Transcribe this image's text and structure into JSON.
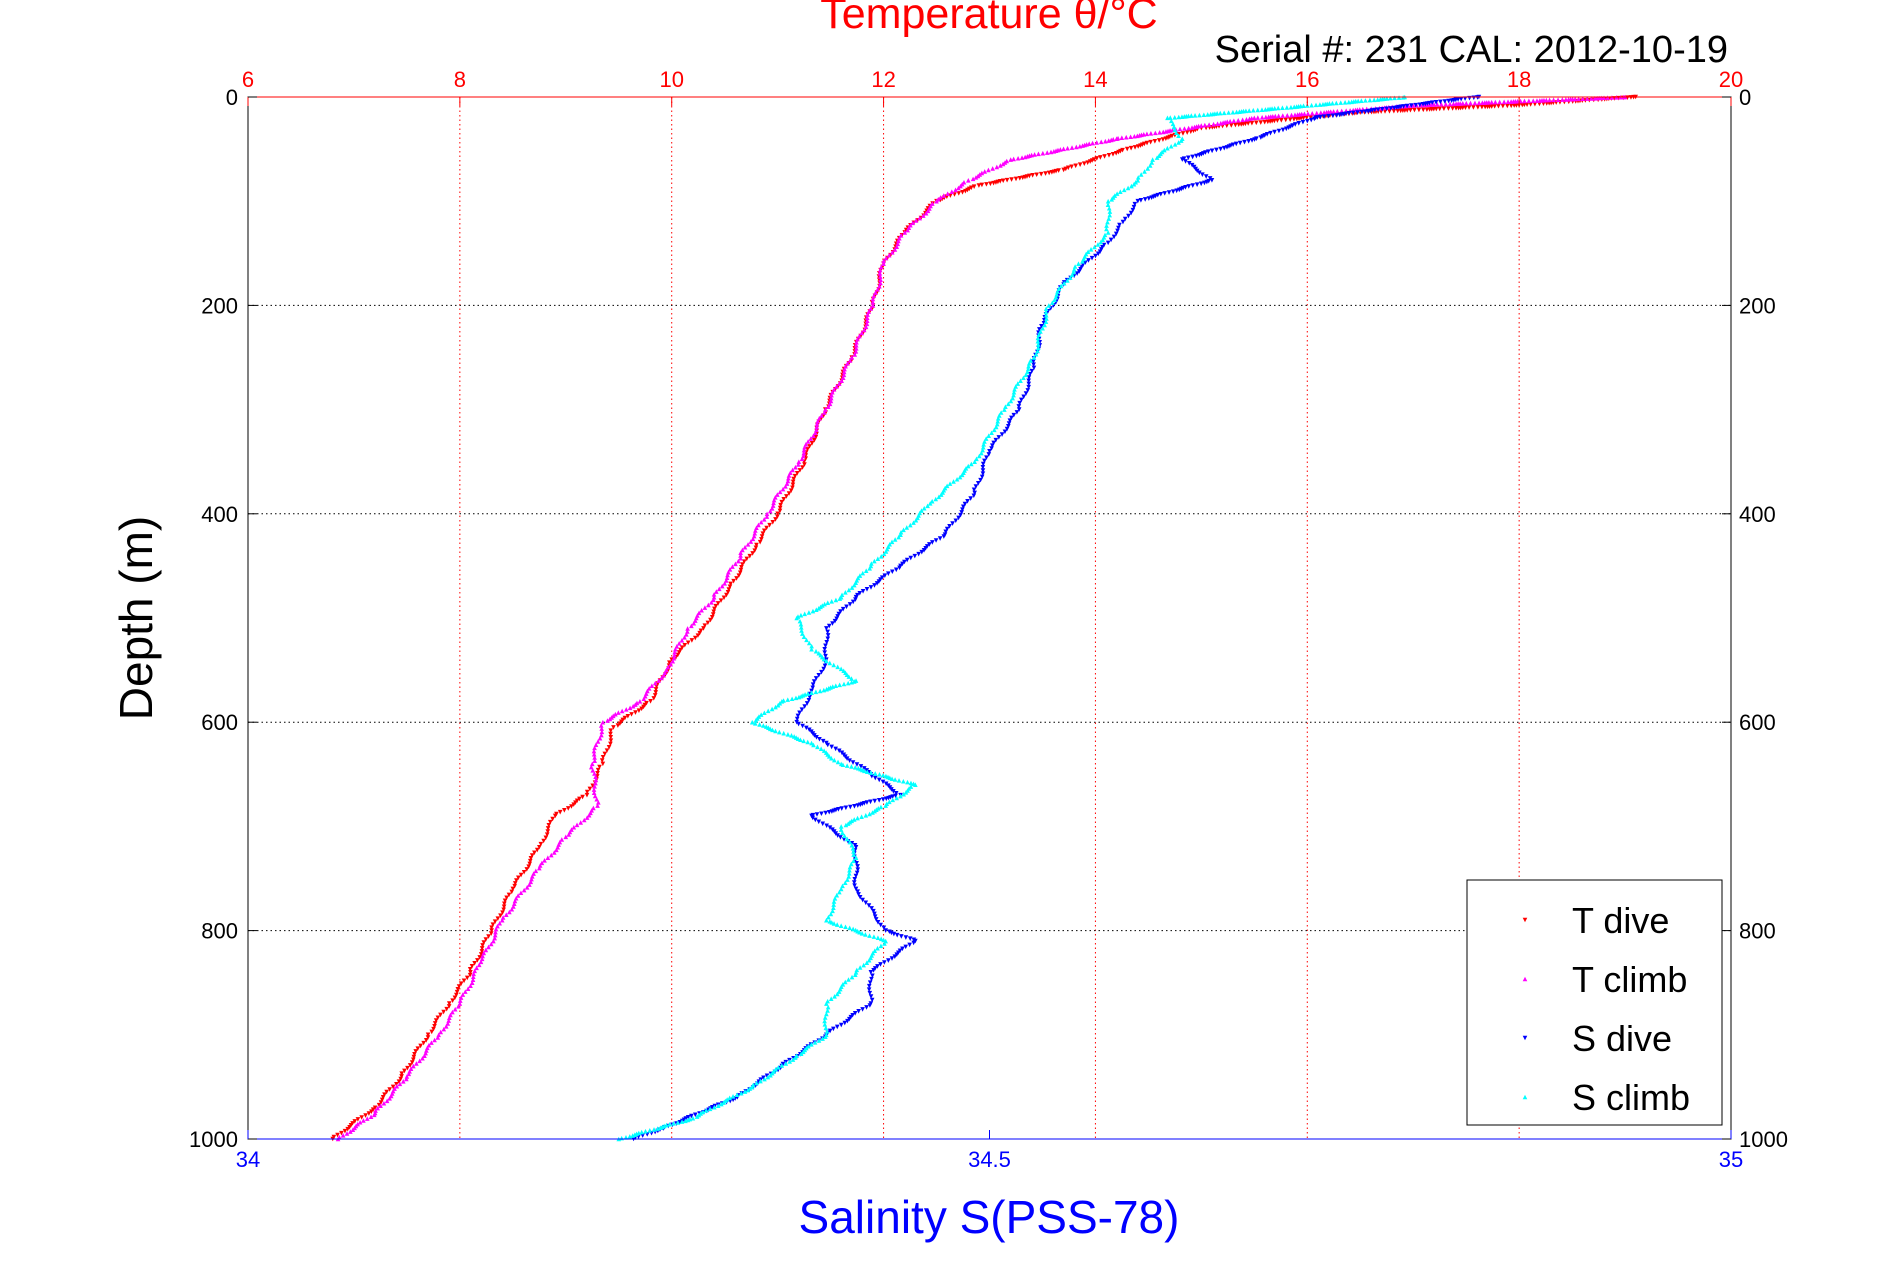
{
  "chart_data": {
    "type": "scatter",
    "title": "Temperature θ/°C",
    "subtitle": "Serial #: 231  CAL: 2012-10-19",
    "ylabel": "Depth (m)",
    "xlabel_bottom": "Salinity S(PSS-78)",
    "xlabel_top": "Temperature θ/°C",
    "y_axis": {
      "range": [
        0,
        1000
      ],
      "reversed": true,
      "ticks": [
        0,
        200,
        400,
        600,
        800,
        1000
      ],
      "tick_labels": [
        "0",
        "200",
        "400",
        "600",
        "800",
        "1000"
      ]
    },
    "x_top_axis": {
      "quantity": "Temperature",
      "range": [
        6,
        20
      ],
      "ticks": [
        6,
        8,
        10,
        12,
        14,
        16,
        18,
        20
      ],
      "tick_labels": [
        "6",
        "8",
        "10",
        "12",
        "14",
        "16",
        "18",
        "20"
      ],
      "color": "#ff0000"
    },
    "x_bottom_axis": {
      "quantity": "Salinity",
      "range": [
        34,
        35
      ],
      "ticks": [
        34,
        34.5,
        35
      ],
      "tick_labels": [
        "34",
        "34.5",
        "35"
      ],
      "color": "#0000ff"
    },
    "grid": true,
    "legend_position": "bottom-right",
    "series": [
      {
        "name": "T dive",
        "axis": "temperature",
        "color": "#ff0000",
        "marker": "triangle-down",
        "points": [
          [
            19.1,
            0
          ],
          [
            18.0,
            8
          ],
          [
            16.5,
            15
          ],
          [
            15.0,
            30
          ],
          [
            14.3,
            50
          ],
          [
            13.7,
            70
          ],
          [
            12.9,
            85
          ],
          [
            12.5,
            100
          ],
          [
            12.2,
            130
          ],
          [
            12.0,
            160
          ],
          [
            11.9,
            200
          ],
          [
            11.7,
            250
          ],
          [
            11.45,
            300
          ],
          [
            11.25,
            350
          ],
          [
            11.0,
            400
          ],
          [
            10.8,
            430
          ],
          [
            10.55,
            470
          ],
          [
            10.3,
            510
          ],
          [
            10.0,
            540
          ],
          [
            9.8,
            580
          ],
          [
            9.45,
            605
          ],
          [
            9.35,
            640
          ],
          [
            9.2,
            670
          ],
          [
            8.9,
            690
          ],
          [
            8.75,
            720
          ],
          [
            8.5,
            760
          ],
          [
            8.3,
            800
          ],
          [
            8.1,
            840
          ],
          [
            7.9,
            870
          ],
          [
            7.7,
            900
          ],
          [
            7.45,
            940
          ],
          [
            7.2,
            970
          ],
          [
            6.8,
            1000
          ]
        ]
      },
      {
        "name": "T climb",
        "axis": "temperature",
        "color": "#ff00ff",
        "marker": "triangle-up",
        "points": [
          [
            19.0,
            0
          ],
          [
            17.0,
            8
          ],
          [
            15.5,
            20
          ],
          [
            14.2,
            40
          ],
          [
            13.2,
            60
          ],
          [
            12.8,
            80
          ],
          [
            12.5,
            100
          ],
          [
            12.2,
            130
          ],
          [
            12.0,
            160
          ],
          [
            11.9,
            200
          ],
          [
            11.7,
            250
          ],
          [
            11.45,
            300
          ],
          [
            11.2,
            350
          ],
          [
            10.9,
            400
          ],
          [
            10.65,
            440
          ],
          [
            10.4,
            480
          ],
          [
            10.15,
            510
          ],
          [
            9.95,
            550
          ],
          [
            9.7,
            580
          ],
          [
            9.35,
            600
          ],
          [
            9.25,
            640
          ],
          [
            9.3,
            680
          ],
          [
            9.0,
            710
          ],
          [
            8.75,
            740
          ],
          [
            8.4,
            790
          ],
          [
            8.2,
            830
          ],
          [
            8.0,
            870
          ],
          [
            7.8,
            900
          ],
          [
            7.5,
            940
          ],
          [
            7.2,
            975
          ],
          [
            6.85,
            1000
          ]
        ]
      },
      {
        "name": "S dive",
        "axis": "salinity",
        "color": "#0000ff",
        "marker": "triangle-down",
        "points": [
          [
            34.83,
            0
          ],
          [
            34.72,
            20
          ],
          [
            34.68,
            40
          ],
          [
            34.63,
            60
          ],
          [
            34.65,
            80
          ],
          [
            34.6,
            100
          ],
          [
            34.59,
            120
          ],
          [
            34.58,
            140
          ],
          [
            34.55,
            180
          ],
          [
            34.535,
            220
          ],
          [
            34.53,
            260
          ],
          [
            34.52,
            300
          ],
          [
            34.5,
            340
          ],
          [
            34.49,
            380
          ],
          [
            34.47,
            420
          ],
          [
            34.44,
            450
          ],
          [
            34.41,
            480
          ],
          [
            34.39,
            510
          ],
          [
            34.39,
            540
          ],
          [
            34.38,
            570
          ],
          [
            34.37,
            600
          ],
          [
            34.39,
            620
          ],
          [
            34.42,
            650
          ],
          [
            34.44,
            670
          ],
          [
            34.38,
            690
          ],
          [
            34.41,
            720
          ],
          [
            34.41,
            760
          ],
          [
            34.43,
            800
          ],
          [
            34.45,
            810
          ],
          [
            34.42,
            840
          ],
          [
            34.42,
            870
          ],
          [
            34.39,
            900
          ],
          [
            34.36,
            930
          ],
          [
            34.33,
            960
          ],
          [
            34.28,
            990
          ],
          [
            34.26,
            1000
          ]
        ]
      },
      {
        "name": "S climb",
        "axis": "salinity",
        "color": "#00ffff",
        "marker": "triangle-up",
        "points": [
          [
            34.78,
            0
          ],
          [
            34.62,
            20
          ],
          [
            34.63,
            40
          ],
          [
            34.61,
            60
          ],
          [
            34.6,
            80
          ],
          [
            34.58,
            100
          ],
          [
            34.58,
            130
          ],
          [
            34.56,
            160
          ],
          [
            34.54,
            200
          ],
          [
            34.53,
            250
          ],
          [
            34.51,
            300
          ],
          [
            34.49,
            350
          ],
          [
            34.46,
            390
          ],
          [
            34.44,
            420
          ],
          [
            34.42,
            450
          ],
          [
            34.4,
            480
          ],
          [
            34.37,
            500
          ],
          [
            34.38,
            530
          ],
          [
            34.41,
            560
          ],
          [
            34.36,
            580
          ],
          [
            34.34,
            600
          ],
          [
            34.38,
            620
          ],
          [
            34.4,
            640
          ],
          [
            34.45,
            660
          ],
          [
            34.43,
            680
          ],
          [
            34.4,
            700
          ],
          [
            34.41,
            730
          ],
          [
            34.4,
            760
          ],
          [
            34.39,
            790
          ],
          [
            34.43,
            810
          ],
          [
            34.41,
            840
          ],
          [
            34.39,
            870
          ],
          [
            34.39,
            900
          ],
          [
            34.37,
            920
          ],
          [
            34.34,
            950
          ],
          [
            34.3,
            980
          ],
          [
            34.25,
            1000
          ]
        ]
      }
    ]
  }
}
